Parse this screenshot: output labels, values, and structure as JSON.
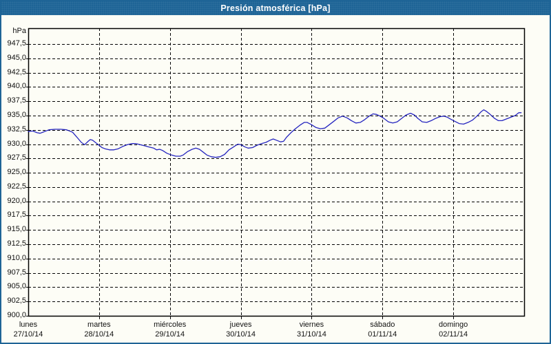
{
  "window": {
    "title": "Presión atmosférica [hPa]"
  },
  "colors": {
    "titlebar_bg": "#1e6496",
    "frame_border": "#1e6496",
    "window_bg": "#fdfdf6",
    "plot_border": "#000000",
    "grid": "#000000",
    "tick": "#000000",
    "label_text": "#111111",
    "title_text": "#ffffff",
    "line": "#2424bf"
  },
  "chart_data": {
    "type": "line",
    "title": "Presión atmosférica [hPa]",
    "ylabel": "hPa",
    "y_unit_label": "hPa",
    "ylim": [
      900.0,
      950.3
    ],
    "y_tick_step": 2.5,
    "y_ticks": [
      947.5,
      945.0,
      942.5,
      940.0,
      937.5,
      935.0,
      932.5,
      930.0,
      927.5,
      925.0,
      922.5,
      920.0,
      917.5,
      915.0,
      912.5,
      910.0,
      907.5,
      905.0,
      902.5,
      900.0
    ],
    "y_tick_labels": [
      "947,5",
      "945,0",
      "942,5",
      "940,0",
      "937,5",
      "935,0",
      "932,5",
      "930,0",
      "927,5",
      "925,0",
      "922,5",
      "920,0",
      "917,5",
      "915,0",
      "912,5",
      "910,0",
      "907,5",
      "905,0",
      "902,5",
      "900,0"
    ],
    "grid": "dashed",
    "legend_position": "none",
    "x_axis": {
      "range_hours": [
        0,
        168
      ],
      "day_width_hours": 24,
      "days": [
        {
          "name": "lunes",
          "date": "27/10/14"
        },
        {
          "name": "martes",
          "date": "28/10/14"
        },
        {
          "name": "miércoles",
          "date": "29/10/14"
        },
        {
          "name": "jueves",
          "date": "30/10/14"
        },
        {
          "name": "viernes",
          "date": "31/10/14"
        },
        {
          "name": "sábado",
          "date": "01/11/14"
        },
        {
          "name": "domingo",
          "date": "02/11/14"
        }
      ]
    },
    "series": [
      {
        "name": "Presión atmosférica",
        "unit": "hPa",
        "color": "#2424bf",
        "points_hours_hpa": [
          [
            0,
            932.2
          ],
          [
            1.5,
            932.3
          ],
          [
            3,
            932.0
          ],
          [
            4,
            931.9
          ],
          [
            5,
            932.1
          ],
          [
            7,
            932.5
          ],
          [
            9,
            932.6
          ],
          [
            11,
            932.6
          ],
          [
            13,
            932.5
          ],
          [
            15,
            932.1
          ],
          [
            16,
            931.5
          ],
          [
            17,
            930.9
          ],
          [
            18,
            930.3
          ],
          [
            19.1,
            929.9
          ],
          [
            20.3,
            930.5
          ],
          [
            21,
            930.8
          ],
          [
            21.8,
            930.7
          ],
          [
            23,
            930.2
          ],
          [
            24,
            929.8
          ],
          [
            25,
            929.4
          ],
          [
            26,
            929.2
          ],
          [
            27.5,
            929.0
          ],
          [
            29,
            929.0
          ],
          [
            30.5,
            929.2
          ],
          [
            32,
            929.6
          ],
          [
            33.5,
            929.9
          ],
          [
            35,
            930.1
          ],
          [
            36.5,
            930.1
          ],
          [
            38,
            929.9
          ],
          [
            39.5,
            929.7
          ],
          [
            41,
            929.5
          ],
          [
            42.5,
            929.3
          ],
          [
            43.5,
            929.0
          ],
          [
            44.5,
            929.1
          ],
          [
            45.5,
            928.9
          ],
          [
            47,
            928.4
          ],
          [
            48.5,
            928.1
          ],
          [
            50,
            927.9
          ],
          [
            51.5,
            927.9
          ],
          [
            52.5,
            928.1
          ],
          [
            54,
            928.7
          ],
          [
            55.5,
            929.1
          ],
          [
            56.8,
            929.3
          ],
          [
            58,
            929.1
          ],
          [
            59.3,
            928.6
          ],
          [
            60.5,
            928.1
          ],
          [
            62,
            927.8
          ],
          [
            63.5,
            927.7
          ],
          [
            65,
            927.8
          ],
          [
            66.5,
            928.2
          ],
          [
            68,
            929.0
          ],
          [
            69.5,
            929.5
          ],
          [
            71,
            930.0
          ],
          [
            72,
            929.9
          ],
          [
            73.5,
            929.5
          ],
          [
            74.5,
            929.3
          ],
          [
            76,
            929.4
          ],
          [
            77.5,
            929.8
          ],
          [
            79,
            930.1
          ],
          [
            80.5,
            930.3
          ],
          [
            82,
            930.7
          ],
          [
            83,
            930.9
          ],
          [
            84,
            930.7
          ],
          [
            85.5,
            930.4
          ],
          [
            86.5,
            930.5
          ],
          [
            87.5,
            931.2
          ],
          [
            89,
            932.0
          ],
          [
            90.5,
            932.7
          ],
          [
            92,
            933.3
          ],
          [
            93.5,
            933.8
          ],
          [
            94.5,
            933.8
          ],
          [
            96,
            933.4
          ],
          [
            97.5,
            932.9
          ],
          [
            99,
            932.7
          ],
          [
            100.5,
            932.8
          ],
          [
            102,
            933.4
          ],
          [
            103.5,
            934.0
          ],
          [
            105,
            934.6
          ],
          [
            106.5,
            934.9
          ],
          [
            108,
            934.6
          ],
          [
            109.5,
            934.1
          ],
          [
            111,
            933.7
          ],
          [
            112.5,
            933.8
          ],
          [
            114,
            934.3
          ],
          [
            115.5,
            934.9
          ],
          [
            116.8,
            935.3
          ],
          [
            118,
            935.2
          ],
          [
            119.2,
            934.9
          ],
          [
            120.5,
            934.5
          ],
          [
            122,
            933.9
          ],
          [
            123.5,
            933.7
          ],
          [
            125,
            933.9
          ],
          [
            126.5,
            934.5
          ],
          [
            128,
            935.1
          ],
          [
            129.5,
            935.4
          ],
          [
            130.8,
            935.1
          ],
          [
            132,
            934.5
          ],
          [
            133.5,
            933.9
          ],
          [
            135,
            933.8
          ],
          [
            136.5,
            934.1
          ],
          [
            138,
            934.5
          ],
          [
            139.5,
            934.8
          ],
          [
            140.8,
            934.9
          ],
          [
            142,
            934.7
          ],
          [
            143,
            934.4
          ],
          [
            144.5,
            934.0
          ],
          [
            146,
            933.6
          ],
          [
            147.5,
            933.5
          ],
          [
            149,
            933.8
          ],
          [
            150.5,
            934.2
          ],
          [
            152,
            934.9
          ],
          [
            153.5,
            935.7
          ],
          [
            154.3,
            936.0
          ],
          [
            155.3,
            935.7
          ],
          [
            156.5,
            935.2
          ],
          [
            158,
            934.5
          ],
          [
            159.3,
            934.1
          ],
          [
            160.5,
            934.1
          ],
          [
            162,
            934.4
          ],
          [
            163.5,
            934.7
          ],
          [
            165,
            935.0
          ],
          [
            166.2,
            935.5
          ],
          [
            167,
            935.5
          ]
        ]
      }
    ]
  }
}
